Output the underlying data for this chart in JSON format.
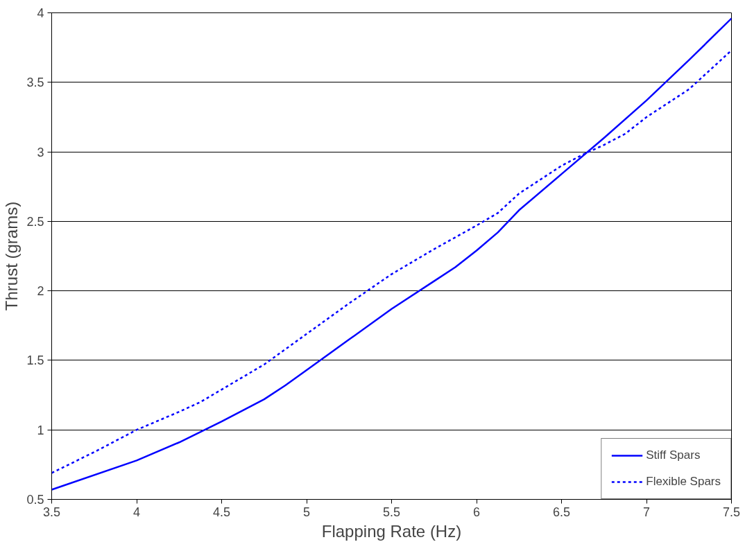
{
  "chart_data": {
    "type": "line",
    "xlabel": "Flapping Rate (Hz)",
    "ylabel": "Thrust (grams)",
    "xlim": [
      3.5,
      7.5
    ],
    "ylim": [
      0.5,
      4
    ],
    "xticks": [
      3.5,
      4,
      4.5,
      5,
      5.5,
      6,
      6.5,
      7,
      7.5
    ],
    "yticks": [
      0.5,
      1,
      1.5,
      2,
      2.5,
      3,
      3.5,
      4
    ],
    "grid": "y",
    "legend": "bottom right",
    "series": [
      {
        "name": "Stiff Spars",
        "color": "#0000ff",
        "line_style": "solid",
        "x": [
          3.5,
          4,
          4.25,
          4.5,
          4.75,
          4.875,
          5,
          5.25,
          5.5,
          5.75,
          5.875,
          6,
          6.125,
          6.25,
          6.5,
          6.75,
          7,
          7.25,
          7.5
        ],
        "values": [
          0.57,
          0.78,
          0.91,
          1.06,
          1.22,
          1.32,
          1.43,
          1.65,
          1.87,
          2.07,
          2.17,
          2.29,
          2.42,
          2.58,
          2.84,
          3.1,
          3.37,
          3.66,
          3.96
        ]
      },
      {
        "name": "Flexible Spars",
        "color": "#0000ff",
        "line_style": "dashed",
        "x": [
          3.5,
          3.75,
          4,
          4.25,
          4.375,
          4.5,
          4.75,
          4.875,
          5,
          5.25,
          5.5,
          5.75,
          6,
          6.125,
          6.25,
          6.5,
          6.625,
          6.75,
          6.875,
          7,
          7.25,
          7.5
        ],
        "values": [
          0.69,
          0.84,
          1.0,
          1.13,
          1.2,
          1.29,
          1.47,
          1.58,
          1.69,
          1.91,
          2.12,
          2.3,
          2.47,
          2.56,
          2.7,
          2.9,
          2.98,
          3.05,
          3.13,
          3.25,
          3.45,
          3.73
        ]
      }
    ]
  }
}
